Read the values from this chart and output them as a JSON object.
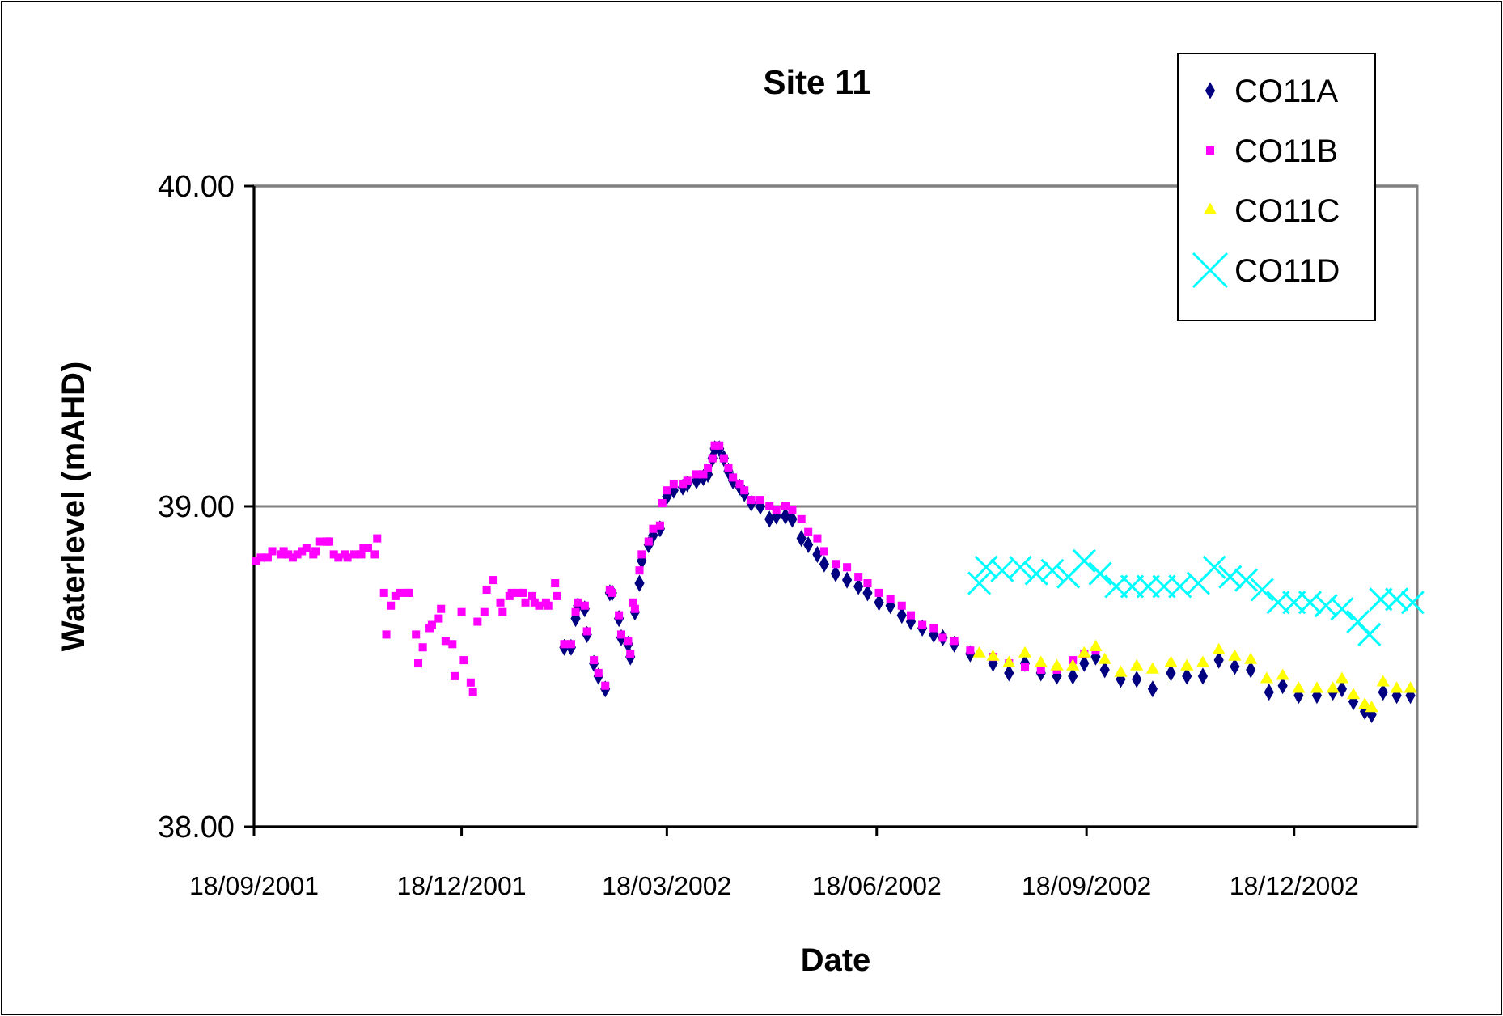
{
  "chart_data": {
    "type": "scatter",
    "title": "Site 11",
    "xlabel": "Date",
    "ylabel": "Waterlevel (mAHD)",
    "xlim": [
      "2001-09-18",
      "2003-02-10"
    ],
    "xticks": [
      {
        "value": "2001-09-18",
        "label": "18/09/2001"
      },
      {
        "value": "2001-12-18",
        "label": "18/12/2001"
      },
      {
        "value": "2002-03-18",
        "label": "18/03/2002"
      },
      {
        "value": "2002-06-18",
        "label": "18/06/2002"
      },
      {
        "value": "2002-09-18",
        "label": "18/09/2002"
      },
      {
        "value": "2002-12-18",
        "label": "18/12/2002"
      }
    ],
    "ylim": [
      38,
      40
    ],
    "yticks": [
      {
        "value": 38,
        "label": "38.00"
      },
      {
        "value": 39,
        "label": "39.00"
      },
      {
        "value": 40,
        "label": "40.00"
      }
    ],
    "grid": "y",
    "legend": "top right",
    "series": [
      {
        "name": "CO11A",
        "color": "#000080",
        "marker": "diamond",
        "x": [
          "2002-02-01",
          "2002-02-04",
          "2002-02-06",
          "2002-02-07",
          "2002-02-10",
          "2002-02-11",
          "2002-02-14",
          "2002-02-16",
          "2002-02-19",
          "2002-02-21",
          "2002-02-22",
          "2002-02-25",
          "2002-02-26",
          "2002-03-01",
          "2002-03-02",
          "2002-03-04",
          "2002-03-06",
          "2002-03-07",
          "2002-03-10",
          "2002-03-12",
          "2002-03-15",
          "2002-03-18",
          "2002-03-21",
          "2002-03-25",
          "2002-03-27",
          "2002-03-31",
          "2002-04-03",
          "2002-04-05",
          "2002-04-07",
          "2002-04-08",
          "2002-04-10",
          "2002-04-12",
          "2002-04-14",
          "2002-04-16",
          "2002-04-19",
          "2002-04-21",
          "2002-04-24",
          "2002-04-28",
          "2002-05-02",
          "2002-05-05",
          "2002-05-09",
          "2002-05-12",
          "2002-05-16",
          "2002-05-19",
          "2002-05-23",
          "2002-05-26",
          "2002-05-31",
          "2002-06-05",
          "2002-06-10",
          "2002-06-14",
          "2002-06-19",
          "2002-06-24",
          "2002-06-29",
          "2002-07-03",
          "2002-07-08",
          "2002-07-13",
          "2002-07-17",
          "2002-07-22",
          "2002-07-29",
          "2002-08-08",
          "2002-08-15",
          "2002-08-22",
          "2002-08-29",
          "2002-09-05",
          "2002-09-12",
          "2002-09-17",
          "2002-09-22",
          "2002-09-26",
          "2002-10-03",
          "2002-10-10",
          "2002-10-17",
          "2002-10-25",
          "2002-11-01",
          "2002-11-08",
          "2002-11-15",
          "2002-11-22",
          "2002-11-29",
          "2002-12-07",
          "2002-12-13",
          "2002-12-20",
          "2002-12-28",
          "2003-01-04",
          "2003-01-08",
          "2003-01-13",
          "2003-01-18",
          "2003-01-21",
          "2003-01-26",
          "2003-02-01",
          "2003-02-07"
        ],
        "values": [
          38.56,
          38.56,
          38.65,
          38.69,
          38.68,
          38.6,
          38.51,
          38.47,
          38.43,
          38.73,
          38.73,
          38.65,
          38.59,
          38.57,
          38.53,
          38.67,
          38.76,
          38.83,
          38.88,
          38.91,
          38.93,
          39.03,
          39.05,
          39.06,
          39.07,
          39.08,
          39.09,
          39.1,
          39.15,
          39.18,
          39.18,
          39.15,
          39.11,
          39.08,
          39.06,
          39.04,
          39.01,
          39.0,
          38.96,
          38.97,
          38.97,
          38.96,
          38.9,
          38.88,
          38.85,
          38.82,
          38.79,
          38.77,
          38.75,
          38.73,
          38.7,
          38.69,
          38.66,
          38.64,
          38.62,
          38.6,
          38.59,
          38.57,
          38.54,
          38.51,
          38.48,
          38.51,
          38.48,
          38.47,
          38.47,
          38.51,
          38.53,
          38.49,
          38.46,
          38.46,
          38.43,
          38.48,
          38.47,
          38.47,
          38.52,
          38.5,
          38.49,
          38.42,
          38.44,
          38.41,
          38.41,
          38.42,
          38.43,
          38.39,
          38.36,
          38.35,
          38.42,
          38.41,
          38.41
        ]
      },
      {
        "name": "CO11B",
        "color": "#ff00ff",
        "marker": "square",
        "x": [
          "2001-09-19",
          "2001-09-21",
          "2001-09-24",
          "2001-09-26",
          "2001-09-30",
          "2001-10-01",
          "2001-10-03",
          "2001-10-05",
          "2001-10-07",
          "2001-10-09",
          "2001-10-11",
          "2001-10-14",
          "2001-10-15",
          "2001-10-17",
          "2001-10-20",
          "2001-10-21",
          "2001-10-23",
          "2001-10-25",
          "2001-10-28",
          "2001-10-29",
          "2001-11-01",
          "2001-11-04",
          "2001-11-05",
          "2001-11-07",
          "2001-11-10",
          "2001-11-11",
          "2001-11-14",
          "2001-11-15",
          "2001-11-17",
          "2001-11-19",
          "2001-11-21",
          "2001-11-24",
          "2001-11-25",
          "2001-11-28",
          "2001-11-29",
          "2001-12-01",
          "2001-12-04",
          "2001-12-05",
          "2001-12-08",
          "2001-12-09",
          "2001-12-11",
          "2001-12-14",
          "2001-12-15",
          "2001-12-18",
          "2001-12-19",
          "2001-12-22",
          "2001-12-23",
          "2001-12-25",
          "2001-12-28",
          "2001-12-29",
          "2002-01-01",
          "2002-01-04",
          "2002-01-05",
          "2002-01-08",
          "2002-01-09",
          "2002-01-12",
          "2002-01-14",
          "2002-01-15",
          "2002-01-18",
          "2002-01-19",
          "2002-01-21",
          "2002-01-24",
          "2002-01-25",
          "2002-01-28",
          "2002-01-29",
          "2002-02-01",
          "2002-02-04",
          "2002-02-06",
          "2002-02-07",
          "2002-02-10",
          "2002-02-11",
          "2002-02-14",
          "2002-02-16",
          "2002-02-19",
          "2002-02-21",
          "2002-02-22",
          "2002-02-25",
          "2002-02-26",
          "2002-03-01",
          "2002-03-02",
          "2002-03-03",
          "2002-03-04",
          "2002-03-06",
          "2002-03-07",
          "2002-03-10",
          "2002-03-12",
          "2002-03-15",
          "2002-03-16",
          "2002-03-18",
          "2002-03-21",
          "2002-03-25",
          "2002-03-27",
          "2002-03-31",
          "2002-04-03",
          "2002-04-05",
          "2002-04-07",
          "2002-04-08",
          "2002-04-10",
          "2002-04-12",
          "2002-04-14",
          "2002-04-16",
          "2002-04-19",
          "2002-04-21",
          "2002-04-24",
          "2002-04-28",
          "2002-05-02",
          "2002-05-05",
          "2002-05-09",
          "2002-05-12",
          "2002-05-16",
          "2002-05-19",
          "2002-05-23",
          "2002-05-26",
          "2002-05-31",
          "2002-06-05",
          "2002-06-10",
          "2002-06-14",
          "2002-06-19",
          "2002-06-24",
          "2002-06-29",
          "2002-07-03",
          "2002-07-08",
          "2002-07-13",
          "2002-07-17",
          "2002-07-22",
          "2002-07-29",
          "2002-08-08",
          "2002-08-15",
          "2002-08-22",
          "2002-08-29",
          "2002-09-05",
          "2002-09-12",
          "2002-09-17",
          "2002-09-22"
        ],
        "values": [
          38.83,
          38.84,
          38.84,
          38.86,
          38.85,
          38.86,
          38.85,
          38.84,
          38.85,
          38.86,
          38.87,
          38.85,
          38.86,
          38.89,
          38.89,
          38.89,
          38.85,
          38.84,
          38.85,
          38.84,
          38.85,
          38.85,
          38.87,
          38.87,
          38.85,
          38.9,
          38.73,
          38.6,
          38.69,
          38.72,
          38.73,
          38.73,
          38.73,
          38.6,
          38.51,
          38.56,
          38.62,
          38.63,
          38.65,
          38.68,
          38.58,
          38.57,
          38.47,
          38.67,
          38.52,
          38.45,
          38.42,
          38.64,
          38.67,
          38.74,
          38.77,
          38.7,
          38.67,
          38.72,
          38.73,
          38.73,
          38.73,
          38.7,
          38.72,
          38.7,
          38.69,
          38.7,
          38.69,
          38.76,
          38.72,
          38.57,
          38.57,
          38.67,
          38.7,
          38.69,
          38.61,
          38.52,
          38.48,
          38.44,
          38.74,
          38.73,
          38.66,
          38.6,
          38.58,
          38.54,
          38.7,
          38.68,
          38.8,
          38.85,
          38.89,
          38.93,
          38.94,
          39.01,
          39.05,
          39.07,
          39.07,
          39.08,
          39.1,
          39.1,
          39.12,
          39.15,
          39.19,
          39.19,
          39.15,
          39.12,
          39.09,
          39.07,
          39.05,
          39.02,
          39.02,
          39.0,
          38.99,
          39.0,
          38.99,
          38.96,
          38.92,
          38.9,
          38.86,
          38.82,
          38.81,
          38.78,
          38.76,
          38.73,
          38.71,
          38.69,
          38.66,
          38.63,
          38.62,
          38.59,
          38.58,
          38.55,
          38.53,
          38.51,
          38.5,
          38.49,
          38.49,
          38.52,
          38.54,
          38.55
        ]
      },
      {
        "name": "CO11C",
        "color": "#ffff00",
        "marker": "triangle",
        "x": [
          "2002-08-02",
          "2002-08-08",
          "2002-08-15",
          "2002-08-22",
          "2002-08-29",
          "2002-09-05",
          "2002-09-12",
          "2002-09-17",
          "2002-09-22",
          "2002-09-26",
          "2002-10-03",
          "2002-10-10",
          "2002-10-17",
          "2002-10-25",
          "2002-11-01",
          "2002-11-08",
          "2002-11-15",
          "2002-11-22",
          "2002-11-29",
          "2002-12-06",
          "2002-12-13",
          "2002-12-20",
          "2002-12-28",
          "2003-01-04",
          "2003-01-08",
          "2003-01-13",
          "2003-01-18",
          "2003-01-21",
          "2003-01-26",
          "2003-02-01",
          "2003-02-07"
        ],
        "values": [
          38.54,
          38.53,
          38.51,
          38.54,
          38.51,
          38.5,
          38.5,
          38.54,
          38.56,
          38.52,
          38.48,
          38.5,
          38.49,
          38.51,
          38.5,
          38.51,
          38.55,
          38.53,
          38.52,
          38.46,
          38.47,
          38.43,
          38.43,
          38.43,
          38.46,
          38.41,
          38.38,
          38.37,
          38.45,
          38.43,
          38.43
        ]
      },
      {
        "name": "CO11D",
        "color": "#00ffff",
        "marker": "cross",
        "x": [
          "2002-08-02",
          "2002-08-05",
          "2002-08-12",
          "2002-08-20",
          "2002-08-27",
          "2002-09-03",
          "2002-09-10",
          "2002-09-17",
          "2002-09-24",
          "2002-10-01",
          "2002-10-08",
          "2002-10-15",
          "2002-10-22",
          "2002-10-29",
          "2002-11-06",
          "2002-11-13",
          "2002-11-20",
          "2002-11-27",
          "2002-12-04",
          "2002-12-11",
          "2002-12-18",
          "2002-12-25",
          "2003-01-01",
          "2003-01-08",
          "2003-01-15",
          "2003-01-20",
          "2003-01-25",
          "2003-02-01",
          "2003-02-08"
        ],
        "values": [
          38.76,
          38.81,
          38.8,
          38.81,
          38.79,
          38.8,
          38.78,
          38.83,
          38.79,
          38.75,
          38.75,
          38.75,
          38.75,
          38.75,
          38.76,
          38.81,
          38.78,
          38.77,
          38.74,
          38.7,
          38.7,
          38.7,
          38.69,
          38.68,
          38.64,
          38.6,
          38.71,
          38.71,
          38.7
        ]
      }
    ]
  }
}
